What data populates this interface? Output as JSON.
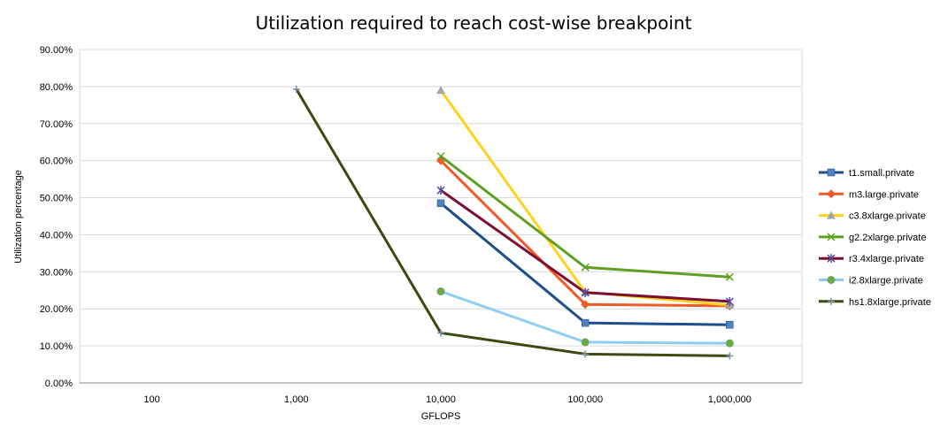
{
  "chart_data": {
    "type": "line",
    "title": "Utilization required to reach cost-wise breakpoint",
    "xlabel": "GFLOPS",
    "ylabel": "Utilization percentage",
    "categories": [
      "100",
      "1,000",
      "10,000",
      "100,000",
      "1,000,000"
    ],
    "ylim": [
      0,
      90
    ],
    "yticks": [
      "0.00%",
      "10.00%",
      "20.00%",
      "30.00%",
      "40.00%",
      "50.00%",
      "60.00%",
      "70.00%",
      "80.00%",
      "90.00%"
    ],
    "grid": true,
    "legend_position": "right",
    "series": [
      {
        "name": "t1.small.private",
        "color": "#1f4e8c",
        "marker": "square",
        "values": [
          null,
          null,
          48.5,
          16.2,
          15.7
        ]
      },
      {
        "name": "m3.large.private",
        "color": "#f05a28",
        "marker": "diamond",
        "values": [
          null,
          null,
          60.0,
          21.2,
          20.8
        ]
      },
      {
        "name": "c3.8xlarge.private",
        "color": "#ffd21f",
        "marker": "triangle",
        "values": [
          null,
          null,
          79.0,
          24.5,
          21.0
        ]
      },
      {
        "name": "g2.2xlarge.private",
        "color": "#5ea021",
        "marker": "x",
        "values": [
          null,
          null,
          61.2,
          31.2,
          28.6
        ]
      },
      {
        "name": "r3.4xlarge.private",
        "color": "#7b0f2f",
        "marker": "star",
        "values": [
          null,
          null,
          52.0,
          24.4,
          22.0
        ]
      },
      {
        "name": "i2.8xlarge.private",
        "color": "#8dcdf5",
        "marker": "circle",
        "values": [
          null,
          null,
          24.7,
          11.0,
          10.7
        ]
      },
      {
        "name": "hs1.8xlarge.private",
        "color": "#3b4a10",
        "marker": "plus",
        "values": [
          null,
          79.3,
          13.5,
          7.8,
          7.3
        ]
      }
    ]
  }
}
